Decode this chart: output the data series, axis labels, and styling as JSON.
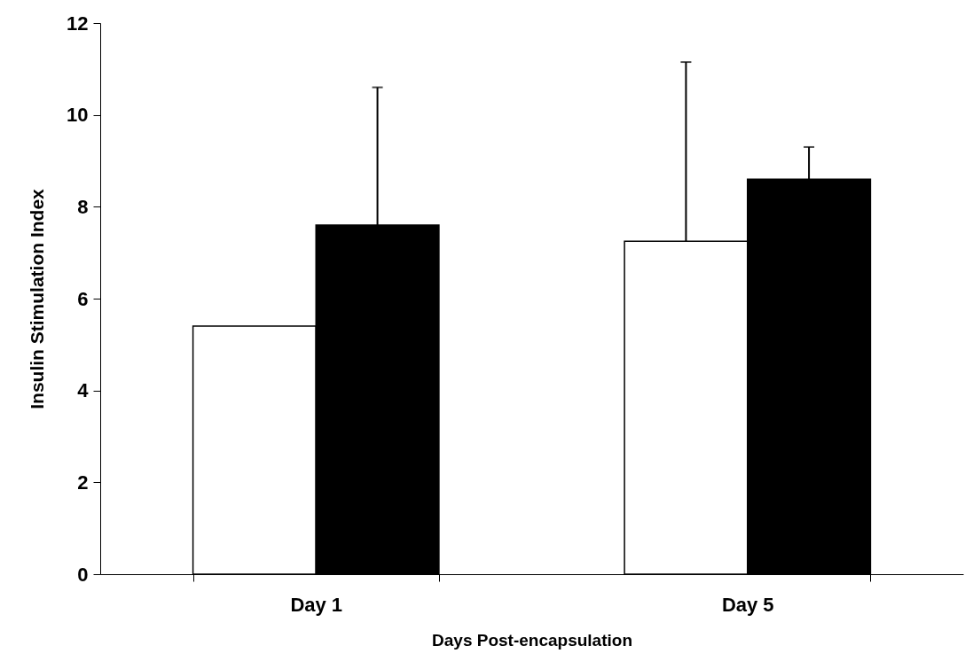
{
  "chart_data": {
    "type": "bar",
    "xlabel": "Days Post-encapsulation",
    "ylabel": "Insulin Stimulation Index",
    "categories": [
      "Day 1",
      "Day 5"
    ],
    "series": [
      {
        "color": "#ffffff",
        "values": [
          5.4,
          7.25
        ],
        "errors": [
          null,
          [
            7.25,
            11.15
          ]
        ]
      },
      {
        "color": "#000000",
        "values": [
          7.6,
          8.6
        ],
        "errors": [
          [
            7.6,
            10.6
          ],
          [
            8.6,
            9.3
          ]
        ]
      }
    ],
    "ylim": [
      0,
      12
    ],
    "yticks": [
      0,
      2,
      4,
      6,
      8,
      10,
      12
    ],
    "grid": false,
    "legend": false
  }
}
